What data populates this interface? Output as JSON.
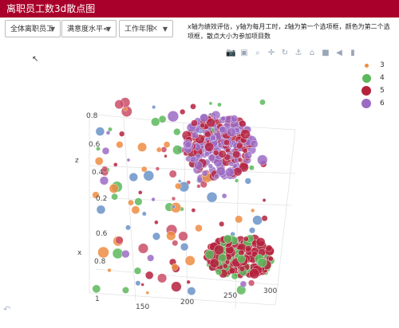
{
  "header": {
    "title": "离职员工数3d散点图"
  },
  "controls": {
    "filters": [
      {
        "label": "全体离职员工",
        "has_clear": false
      },
      {
        "label": "满意度水平<",
        "has_clear": false
      },
      {
        "label": "工作年限",
        "has_clear": true
      }
    ],
    "description": "x轴为绩效评估，y轴为每月工时，z轴为第一个选项框，颜色为第二个选项框，散点大小为参加项目数"
  },
  "toolbar": {
    "icons": [
      "camera-icon",
      "save-icon",
      "zoom-icon",
      "pan-icon",
      "orbit-icon",
      "turntable-icon",
      "home-icon",
      "camera-reset-icon",
      "spike-icon",
      "logo-icon"
    ]
  },
  "legend": {
    "items": [
      {
        "label": "3",
        "color": "#ee8c42"
      },
      {
        "label": "4",
        "color": "#5cb85c"
      },
      {
        "label": "5",
        "color": "#b5213d"
      },
      {
        "label": "6",
        "color": "#9b6bc4"
      }
    ]
  },
  "axes": {
    "z_label": "z",
    "x_label": "x",
    "z_ticks": [
      "0.8",
      "0.6",
      "0.4",
      "0.2"
    ],
    "x_ticks": [
      "0.6",
      "0.8",
      "1"
    ],
    "y_ticks": [
      "150",
      "200",
      "250",
      "300"
    ]
  },
  "chart_data": {
    "type": "scatter",
    "is_3d": true,
    "series": [
      {
        "name": "3",
        "color": "#ee8c42"
      },
      {
        "name": "4",
        "color": "#5cb85c"
      },
      {
        "name": "5",
        "color": "#b5213d"
      },
      {
        "name": "6",
        "color": "#9b6bc4"
      }
    ]
  }
}
